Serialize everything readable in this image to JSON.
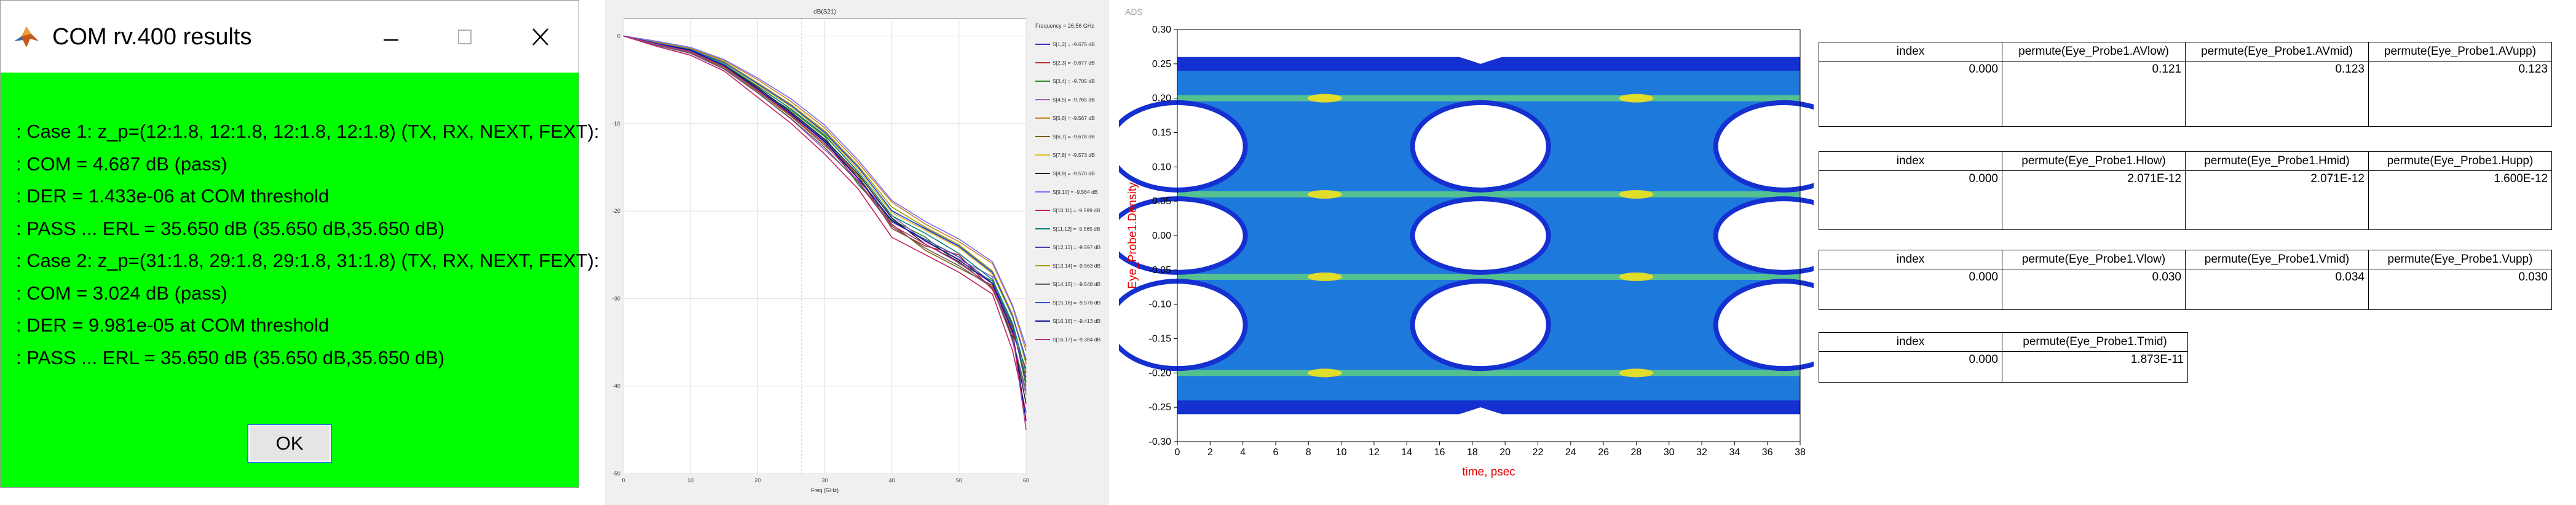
{
  "com_dialog": {
    "title": "COM rv.400 results",
    "lines": [
      ": Case 1: z_p=(12:1.8, 12:1.8, 12:1.8, 12:1.8) (TX, RX, NEXT, FEXT):",
      ": COM = 4.687 dB (pass)",
      ": DER = 1.433e-06 at COM threshold",
      ": PASS ... ERL = 35.650 dB (35.650 dB,35.650 dB)",
      ": Case 2: z_p=(31:1.8, 29:1.8, 29:1.8, 31:1.8) (TX, RX, NEXT, FEXT):",
      ": COM = 3.024 dB (pass)",
      ": DER = 9.981e-05 at COM threshold",
      ": PASS ... ERL = 35.650 dB (35.650 dB,35.650 dB)"
    ],
    "ok_label": "OK",
    "background": "#00ff00"
  },
  "chart_data": [
    {
      "type": "line",
      "title": "dB(S21)",
      "xlabel": "Freq (GHz)",
      "ylabel": "",
      "xlim": [
        0,
        60
      ],
      "ylim": [
        -50,
        2
      ],
      "x_ticks": [
        "0",
        "10",
        "20",
        "30",
        "40",
        "50",
        "60"
      ],
      "y_ticks": [
        "0",
        "-10",
        "-20",
        "-30",
        "-40",
        "-50"
      ],
      "legend_header": "Frequency = 26.56 GHz",
      "legend_position": "right",
      "grid": true,
      "series": [
        {
          "name": "S[1,2] = -9.675 dB",
          "color": "#3030c0",
          "x": [
            0,
            5,
            10,
            15,
            20,
            25,
            30,
            35,
            40,
            45,
            50,
            55,
            58,
            60
          ],
          "y": [
            0,
            -0.8,
            -1.5,
            -3,
            -5.5,
            -8,
            -11,
            -15,
            -20,
            -22,
            -24,
            -27,
            -32,
            -37
          ]
        },
        {
          "name": "S[2,3] = -9.677 dB",
          "color": "#c03030",
          "x": [
            0,
            5,
            10,
            15,
            20,
            25,
            30,
            35,
            40,
            45,
            50,
            55,
            58,
            60
          ],
          "y": [
            0,
            -1,
            -1.8,
            -3.5,
            -6,
            -9,
            -12,
            -16,
            -22,
            -24,
            -25,
            -29,
            -34,
            -38
          ]
        },
        {
          "name": "S[3,4] = -9.705 dB",
          "color": "#2a8a2a",
          "x": [
            0,
            5,
            10,
            15,
            20,
            25,
            30,
            35,
            40,
            45,
            50,
            55,
            58,
            60
          ],
          "y": [
            0,
            -0.9,
            -1.6,
            -3.2,
            -6.2,
            -8.5,
            -11.5,
            -17,
            -21,
            -23,
            -26,
            -28,
            -33,
            -40
          ]
        },
        {
          "name": "S[4,5] = -9.765 dB",
          "color": "#a060c0",
          "x": [
            0,
            5,
            10,
            15,
            20,
            25,
            30,
            35,
            40,
            45,
            50,
            55,
            58,
            60
          ],
          "y": [
            0,
            -1.1,
            -2,
            -3.8,
            -6.5,
            -9.5,
            -13,
            -16.5,
            -20.5,
            -23.5,
            -25.5,
            -27.5,
            -35,
            -41
          ]
        },
        {
          "name": "S[5,6] = -9.567 dB",
          "color": "#d08020",
          "x": [
            0,
            5,
            10,
            15,
            20,
            25,
            30,
            35,
            40,
            45,
            50,
            55,
            58,
            60
          ],
          "y": [
            0,
            -0.7,
            -1.4,
            -2.8,
            -5,
            -7.5,
            -10.5,
            -14.5,
            -19,
            -21.5,
            -23.5,
            -26,
            -31,
            -36
          ]
        },
        {
          "name": "S[6,7] = -9.678 dB",
          "color": "#806000",
          "x": [
            0,
            5,
            10,
            15,
            20,
            25,
            30,
            35,
            40,
            45,
            50,
            55,
            58,
            60
          ],
          "y": [
            0,
            -1,
            -1.9,
            -3.6,
            -6.3,
            -9.2,
            -12.5,
            -16,
            -21.5,
            -24.5,
            -26.5,
            -28.5,
            -33.5,
            -39
          ]
        },
        {
          "name": "S[7,8] = -9.573 dB",
          "color": "#e0c020",
          "x": [
            0,
            5,
            10,
            15,
            20,
            25,
            30,
            35,
            40,
            45,
            50,
            55,
            58,
            60
          ],
          "y": [
            0,
            -0.8,
            -1.5,
            -3.1,
            -5.6,
            -8.1,
            -11.2,
            -15.3,
            -20.2,
            -22.2,
            -24.2,
            -27.2,
            -32.2,
            -37.2
          ]
        },
        {
          "name": "S[8,9] = -9.570 dB",
          "color": "#202020",
          "x": [
            0,
            5,
            10,
            15,
            20,
            25,
            30,
            35,
            40,
            45,
            50,
            55,
            58,
            60
          ],
          "y": [
            0,
            -0.9,
            -1.7,
            -3.3,
            -5.9,
            -8.7,
            -11.8,
            -15.8,
            -20.8,
            -23.8,
            -25.8,
            -28.8,
            -34.5,
            -42
          ]
        },
        {
          "name": "S[9,10] = -9.564 dB",
          "color": "#7070ff",
          "x": [
            0,
            5,
            10,
            15,
            20,
            25,
            30,
            35,
            40,
            45,
            50,
            55,
            58,
            60
          ],
          "y": [
            0,
            -0.6,
            -1.3,
            -2.7,
            -4.8,
            -7.2,
            -10.2,
            -14.2,
            -18.8,
            -21.2,
            -23.2,
            -25.8,
            -30.8,
            -35.5
          ]
        },
        {
          "name": "S[10,11] = -9.599 dB",
          "color": "#c02060",
          "x": [
            0,
            5,
            10,
            15,
            20,
            25,
            30,
            35,
            40,
            45,
            50,
            55,
            58,
            60
          ],
          "y": [
            0,
            -1.2,
            -2.2,
            -4,
            -7,
            -10,
            -13.5,
            -17.5,
            -23,
            -25,
            -27,
            -29.5,
            -36,
            -43
          ]
        },
        {
          "name": "S[11,12] = -9.565 dB",
          "color": "#008080",
          "x": [
            0,
            5,
            10,
            15,
            20,
            25,
            30,
            35,
            40,
            45,
            50,
            55,
            58,
            60
          ],
          "y": [
            0,
            -0.85,
            -1.65,
            -3.25,
            -5.75,
            -8.35,
            -11.35,
            -15.55,
            -20.55,
            -22.55,
            -24.85,
            -27.85,
            -32.85,
            -38.5
          ]
        },
        {
          "name": "S[12,13] = -9.597 dB",
          "color": "#4040a0",
          "x": [
            0,
            5,
            10,
            15,
            20,
            25,
            30,
            35,
            40,
            45,
            50,
            55,
            58,
            60
          ],
          "y": [
            0,
            -0.95,
            -1.75,
            -3.45,
            -6.05,
            -8.85,
            -11.95,
            -16.25,
            -21.25,
            -23.25,
            -25.25,
            -28.25,
            -33.25,
            -39.5
          ]
        },
        {
          "name": "S[13,14] = -9.563 dB",
          "color": "#a0a000",
          "x": [
            0,
            5,
            10,
            15,
            20,
            25,
            30,
            35,
            40,
            45,
            50,
            55,
            58,
            60
          ],
          "y": [
            0,
            -0.75,
            -1.45,
            -2.95,
            -5.35,
            -7.85,
            -10.85,
            -14.85,
            -19.55,
            -21.85,
            -23.85,
            -26.85,
            -31.85,
            -37.5
          ]
        },
        {
          "name": "S[14,15] = -9.548 dB",
          "color": "#606060",
          "x": [
            0,
            5,
            10,
            15,
            20,
            25,
            30,
            35,
            40,
            45,
            50,
            55,
            58,
            60
          ],
          "y": [
            0,
            -1.05,
            -1.95,
            -3.75,
            -6.45,
            -9.45,
            -12.75,
            -16.75,
            -21.75,
            -24.25,
            -26.25,
            -28.75,
            -34.75,
            -40.5
          ]
        },
        {
          "name": "S[15,16] = -9.578 dB",
          "color": "#3050e0",
          "x": [
            0,
            5,
            10,
            15,
            20,
            25,
            30,
            35,
            40,
            45,
            50,
            55,
            58,
            60
          ],
          "y": [
            0,
            -0.82,
            -1.55,
            -3.05,
            -5.45,
            -7.95,
            -11.05,
            -15.05,
            -19.95,
            -22.05,
            -24.05,
            -27.05,
            -32.05,
            -37.05
          ]
        },
        {
          "name": "S[16,16] = -9.413 dB",
          "color": "#1010a0",
          "x": [
            0,
            5,
            10,
            15,
            20,
            25,
            30,
            35,
            40,
            45,
            50,
            55,
            58,
            60
          ],
          "y": [
            0,
            -0.9,
            -1.6,
            -3.4,
            -6.1,
            -8.9,
            -12.1,
            -16.3,
            -21.1,
            -23.4,
            -25.6,
            -28.3,
            -33.8,
            -44
          ]
        },
        {
          "name": "S[16,17] = -9.384 dB",
          "color": "#c03080",
          "x": [
            0,
            5,
            10,
            15,
            20,
            25,
            30,
            35,
            40,
            45,
            50,
            55,
            58,
            60
          ],
          "y": [
            0,
            -0.95,
            -1.8,
            -3.5,
            -6.2,
            -9.1,
            -12.3,
            -16.6,
            -21.6,
            -23.8,
            -25.9,
            -28.7,
            -34.1,
            -45
          ]
        }
      ]
    },
    {
      "type": "heatmap",
      "title": "",
      "corner_label": "ADS",
      "xlabel": "time, psec",
      "ylabel": "Eye_Probe1.Density",
      "xlim": [
        0,
        38
      ],
      "ylim": [
        -0.3,
        0.3
      ],
      "x_ticks": [
        "0",
        "2",
        "4",
        "6",
        "8",
        "10",
        "12",
        "14",
        "16",
        "18",
        "20",
        "22",
        "24",
        "26",
        "28",
        "30",
        "32",
        "34",
        "36",
        "38"
      ],
      "y_ticks": [
        "0.30",
        "0.25",
        "0.20",
        "0.15",
        "0.10",
        "0.05",
        "0.00",
        "-0.05",
        "-0.10",
        "-0.15",
        "-0.20",
        "-0.25",
        "-0.30"
      ],
      "levels": [
        -0.2,
        -0.06,
        0.06,
        0.2
      ],
      "eye_centers_psec": [
        0,
        18.5,
        37
      ],
      "eye_openings": [
        {
          "center_psec": 18.5,
          "vcenter": 0.13,
          "half_height": 0.06
        },
        {
          "center_psec": 18.5,
          "vcenter": 0.0,
          "half_height": 0.05
        },
        {
          "center_psec": 18.5,
          "vcenter": -0.13,
          "half_height": 0.06
        }
      ],
      "colors": {
        "low": "#1530d0",
        "mid": "#26b6e8",
        "high": "#6ce070",
        "peak": "#f0e020"
      }
    }
  ],
  "tables": [
    {
      "headers": [
        "index",
        "permute(Eye_Probe1.AVlow)",
        "permute(Eye_Probe1.AVmid)",
        "permute(Eye_Probe1.AVupp)"
      ],
      "row": [
        "0.000",
        "0.121",
        "0.123",
        "0.123"
      ]
    },
    {
      "headers": [
        "index",
        "permute(Eye_Probe1.Hlow)",
        "permute(Eye_Probe1.Hmid)",
        "permute(Eye_Probe1.Hupp)"
      ],
      "row": [
        "0.000",
        "2.071E-12",
        "2.071E-12",
        "1.600E-12"
      ]
    },
    {
      "headers": [
        "index",
        "permute(Eye_Probe1.Vlow)",
        "permute(Eye_Probe1.Vmid)",
        "permute(Eye_Probe1.Vupp)"
      ],
      "row": [
        "0.000",
        "0.030",
        "0.034",
        "0.030"
      ]
    },
    {
      "headers": [
        "index",
        "permute(Eye_Probe1.Tmid)"
      ],
      "row": [
        "0.000",
        "1.873E-11"
      ]
    }
  ]
}
